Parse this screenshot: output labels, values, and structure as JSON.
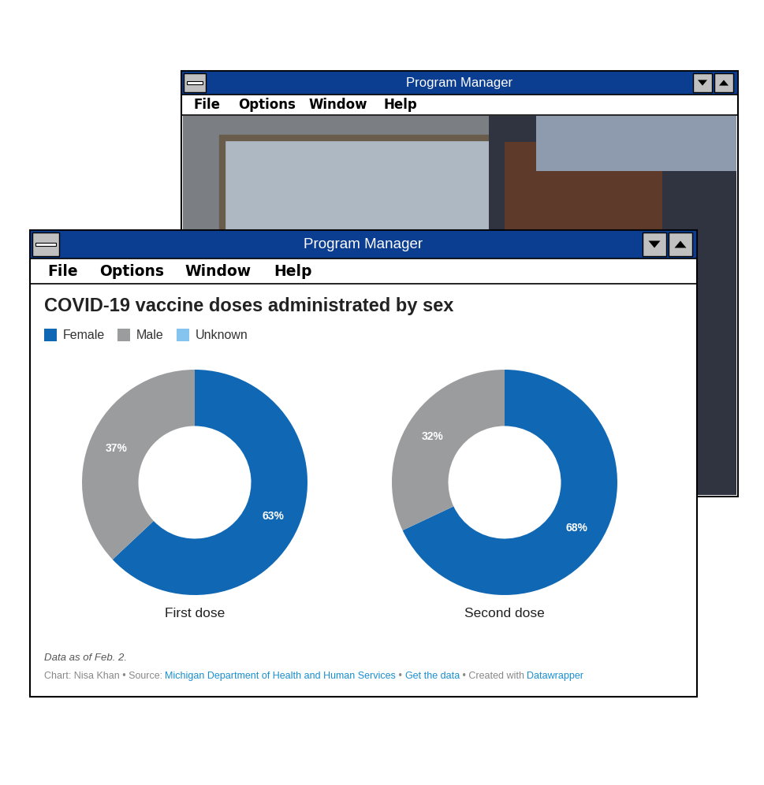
{
  "windows": [
    {
      "title": "Program Manager",
      "menu": [
        "File",
        "Options",
        "Window",
        "Help"
      ]
    },
    {
      "title": "Program Manager",
      "menu": [
        "File",
        "Options",
        "Window",
        "Help"
      ]
    }
  ],
  "chart_data": {
    "type": "pie",
    "title": "COVID-19 vaccine doses administrated by sex",
    "categories": [
      "Female",
      "Male",
      "Unknown"
    ],
    "colors": [
      "#1068b4",
      "#9b9c9e",
      "#84c4ef"
    ],
    "legend": "top left",
    "data_labels": true,
    "charts": [
      {
        "name": "First dose",
        "values": [
          63,
          37,
          0
        ],
        "value_labels": [
          "63%",
          "37%",
          null
        ]
      },
      {
        "name": "Second dose",
        "values": [
          68,
          32,
          0
        ],
        "value_labels": [
          "68%",
          "32%",
          null
        ]
      }
    ],
    "note": "Data as of Feb. 2.",
    "credits": [
      "Chart: Nisa Khan • Source: ",
      "Michigan Department of Health and Human Services",
      " • ",
      "Get the data",
      " • Created with ",
      "Datawrapper"
    ]
  }
}
